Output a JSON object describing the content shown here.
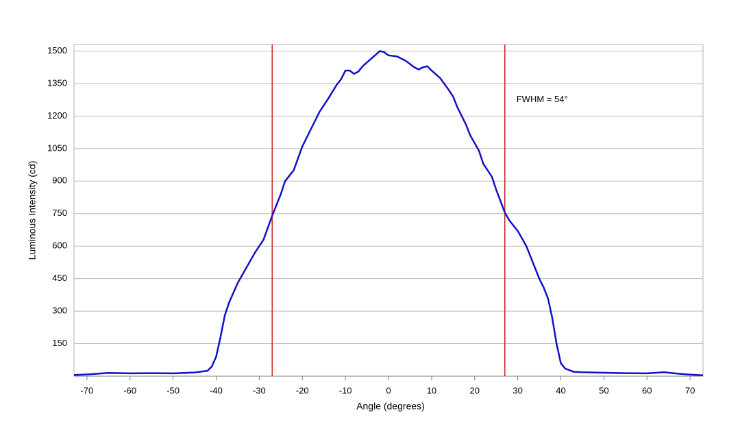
{
  "chart_data": {
    "type": "line",
    "x_label": "Angle (degrees)",
    "y_label": "Luminous Intensity (cd)",
    "annotation": "FWHM = 54°",
    "annotation_x": 29.7,
    "annotation_y": 1276,
    "vlines": [
      -27,
      27
    ],
    "vline_color": "#cc2222",
    "series": [
      {
        "name": "Luminous Intensity",
        "color": "#1010c8",
        "x": [
          -73,
          -70,
          -65,
          -60,
          -55,
          -50,
          -45,
          -42,
          -41,
          -40,
          -39,
          -38,
          -37,
          -35,
          -33,
          -31,
          -29,
          -27,
          -25,
          -24,
          -22,
          -20,
          -18,
          -16,
          -14,
          -12,
          -11,
          -10,
          -9,
          -8,
          -7,
          -6,
          -4,
          -2,
          -1,
          0,
          2,
          4,
          6,
          7,
          8,
          9,
          10,
          12,
          14,
          15,
          16,
          18,
          19,
          21,
          22,
          24,
          25,
          27,
          28,
          30,
          32,
          34,
          35,
          36,
          37,
          38,
          39,
          40,
          41,
          43,
          45,
          50,
          55,
          60,
          64,
          67,
          70,
          73
        ],
        "values": [
          5,
          8,
          15,
          13,
          14,
          13,
          17,
          25,
          45,
          90,
          180,
          280,
          340,
          430,
          500,
          570,
          630,
          740,
          840,
          900,
          950,
          1060,
          1140,
          1220,
          1280,
          1345,
          1370,
          1410,
          1410,
          1395,
          1405,
          1430,
          1465,
          1500,
          1495,
          1480,
          1475,
          1455,
          1425,
          1415,
          1425,
          1430,
          1410,
          1375,
          1320,
          1290,
          1240,
          1160,
          1110,
          1040,
          980,
          920,
          860,
          755,
          720,
          670,
          600,
          500,
          450,
          410,
          360,
          270,
          150,
          60,
          35,
          20,
          18,
          16,
          14,
          13,
          18,
          12,
          7,
          4
        ]
      }
    ],
    "xlim": [
      -73,
      73
    ],
    "ylim": [
      0,
      1530
    ],
    "xticks": [
      -70,
      -60,
      -50,
      -40,
      -30,
      -20,
      -10,
      0,
      10,
      20,
      30,
      40,
      50,
      60,
      70
    ],
    "yticks": [
      150,
      300,
      450,
      600,
      750,
      900,
      1050,
      1200,
      1350,
      1500
    ],
    "grid": true
  }
}
